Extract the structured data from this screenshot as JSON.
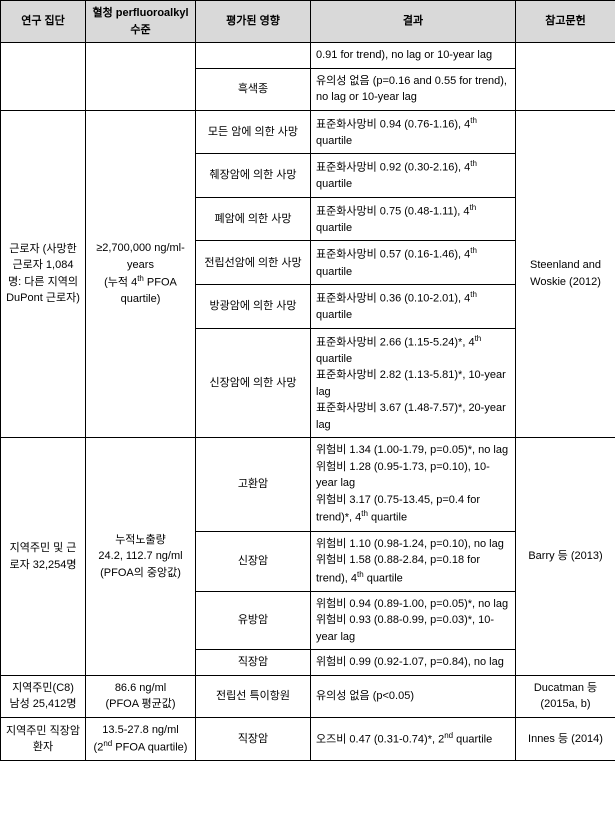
{
  "headers": {
    "group": "연구 집단",
    "level": "혈청 perfluoroalkyl 수준",
    "effect": "평가된 영향",
    "result": "결과",
    "reference": "참고문헌"
  },
  "section1": {
    "r1_result": "0.91 for trend), no lag or 10-year lag",
    "r2_effect": "흑색종",
    "r2_result": "유의성 없음 (p=0.16 and 0.55 for trend), no lag or 10-year lag"
  },
  "section2": {
    "group": "근로자 (사망한 근로자 1,084명: 다른 지역의 DuPont 근로자)",
    "level_line1": "≥2,700,000 ng/ml-years",
    "level_line2": "(누적 4",
    "level_line3": " PFOA quartile)",
    "reference": "Steenland and Woskie (2012)",
    "r1_effect": "모든 암에 의한 사망",
    "r1_result_a": "표준화사망비 0.94 (0.76-1.16), 4",
    "r1_result_b": " quartile",
    "r2_effect": "췌장암에 의한 사망",
    "r2_result_a": "표준화사망비 0.92 (0.30-2.16), 4",
    "r2_result_b": " quartile",
    "r3_effect": "폐암에 의한 사망",
    "r3_result_a": "표준화사망비 0.75 (0.48-1.11), 4",
    "r3_result_b": " quartile",
    "r4_effect": "전립선암에 의한 사망",
    "r4_result_a": "표준화사망비 0.57 (0.16-1.46), 4",
    "r4_result_b": " quartile",
    "r5_effect": "방광암에 의한 사망",
    "r5_result_a": "표준화사망비 0.36 (0.10-2.01), 4",
    "r5_result_b": " quartile",
    "r6_effect": "신장암에 의한 사망",
    "r6_result_a": "표준화사망비 2.66 (1.15-5.24)*, 4",
    "r6_result_b": " quartile",
    "r6_result_c": "표준화사망비 2.82 (1.13-5.81)*, 10-year lag",
    "r6_result_d": "표준화사망비 3.67 (1.48-7.57)*, 20-year lag"
  },
  "section3": {
    "group": "지역주민 및 근로자 32,254명",
    "level_line1": "누적노출량",
    "level_line2": "24.2, 112.7 ng/ml",
    "level_line3": "(PFOA의 중앙값)",
    "reference": "Barry 등 (2013)",
    "r1_effect": "고환암",
    "r1_result_a": "위험비 1.34 (1.00-1.79, p=0.05)*, no lag",
    "r1_result_b": "위험비 1.28 (0.95-1.73, p=0.10), 10-year lag",
    "r1_result_c1": "위험비 3.17 (0.75-13.45, p=0.4 for trend)*, 4",
    "r1_result_c2": " quartile",
    "r2_effect": "신장암",
    "r2_result_a": "위험비 1.10 (0.98-1.24, p=0.10), no lag",
    "r2_result_b1": "위험비 1.58 (0.88-2.84, p=0.18 for trend), 4",
    "r2_result_b2": " quartile",
    "r3_effect": "유방암",
    "r3_result_a": "위험비 0.94 (0.89-1.00, p=0.05)*, no lag",
    "r3_result_b": "위험비 0.93 (0.88-0.99, p=0.03)*, 10-year lag",
    "r4_effect": "직장암",
    "r4_result": "위험비 0.99 (0.92-1.07, p=0.84), no lag"
  },
  "section4": {
    "group": "지역주민(C8) 남성 25,412명",
    "level_line1": "86.6 ng/ml",
    "level_line2": "(PFOA 평균값)",
    "effect": "전립선 특이항원",
    "result": "유의성 없음 (p<0.05)",
    "reference": "Ducatman 등 (2015a, b)"
  },
  "section5": {
    "group": "지역주민 직장암 환자",
    "level_line1": "13.5-27.8 ng/ml",
    "level_line2a": "(2",
    "level_line2b": " PFOA quartile)",
    "effect": "직장암",
    "result_a": "오즈비 0.47 (0.31-0.74)*, 2",
    "result_b": " quartile",
    "reference": "Innes 등 (2014)"
  },
  "sup_th": "th",
  "sup_nd": "nd"
}
